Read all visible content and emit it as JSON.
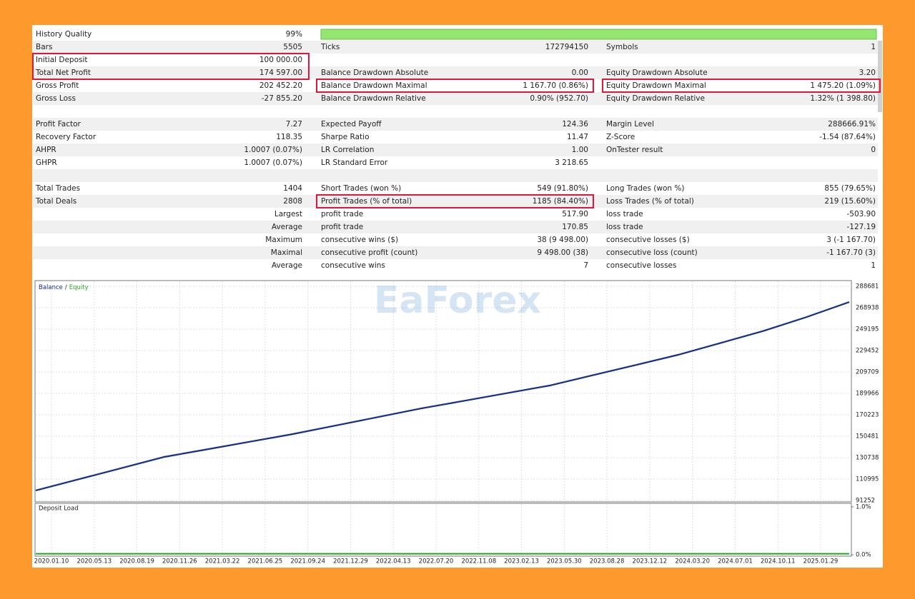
{
  "report": {
    "quality_bar_color": "#93e66f",
    "rows": [
      {
        "c1": {
          "label": "History Quality",
          "value": "99%"
        }
      },
      {
        "c1": {
          "label": "Bars",
          "value": "5505"
        },
        "c2": {
          "label": "Ticks",
          "value": "172794150"
        },
        "c3": {
          "label": "Symbols",
          "value": "1"
        }
      },
      {
        "c1": {
          "label": "Initial Deposit",
          "value": "100 000.00"
        }
      },
      {
        "c1": {
          "label": "Total Net Profit",
          "value": "174 597.00"
        },
        "c2": {
          "label": "Balance Drawdown Absolute",
          "value": "0.00"
        },
        "c3": {
          "label": "Equity Drawdown Absolute",
          "value": "3.20"
        }
      },
      {
        "c1": {
          "label": "Gross Profit",
          "value": "202 452.20"
        },
        "c2": {
          "label": "Balance Drawdown Maximal",
          "value": "1 167.70 (0.86%)"
        },
        "c3": {
          "label": "Equity Drawdown Maximal",
          "value": "1 475.20 (1.09%)"
        }
      },
      {
        "c1": {
          "label": "Gross Loss",
          "value": "-27 855.20"
        },
        "c2": {
          "label": "Balance Drawdown Relative",
          "value": "0.90% (952.70)"
        },
        "c3": {
          "label": "Equity Drawdown Relative",
          "value": "1.32% (1 398.80)"
        }
      },
      {},
      {
        "c1": {
          "label": "Profit Factor",
          "value": "7.27"
        },
        "c2": {
          "label": "Expected Payoff",
          "value": "124.36"
        },
        "c3": {
          "label": "Margin Level",
          "value": "288666.91%"
        }
      },
      {
        "c1": {
          "label": "Recovery Factor",
          "value": "118.35"
        },
        "c2": {
          "label": "Sharpe Ratio",
          "value": "11.47"
        },
        "c3": {
          "label": "Z-Score",
          "value": "-1.54 (87.64%)"
        }
      },
      {
        "c1": {
          "label": "AHPR",
          "value": "1.0007 (0.07%)"
        },
        "c2": {
          "label": "LR Correlation",
          "value": "1.00"
        },
        "c3": {
          "label": "OnTester result",
          "value": "0"
        }
      },
      {
        "c1": {
          "label": "GHPR",
          "value": "1.0007 (0.07%)"
        },
        "c2": {
          "label": "LR Standard Error",
          "value": "3 218.65"
        }
      },
      {},
      {
        "c1": {
          "label": "Total Trades",
          "value": "1404"
        },
        "c2": {
          "label": "Short Trades (won %)",
          "value": "549 (91.80%)"
        },
        "c3": {
          "label": "Long Trades (won %)",
          "value": "855 (79.65%)"
        }
      },
      {
        "c1": {
          "label": "Total Deals",
          "value": "2808"
        },
        "c2": {
          "label": "Profit Trades (% of total)",
          "value": "1185 (84.40%)"
        },
        "c3": {
          "label": "Loss Trades (% of total)",
          "value": "219 (15.60%)"
        }
      },
      {
        "c1": {
          "value": "Largest"
        },
        "c2": {
          "label": "profit trade",
          "value": "517.90"
        },
        "c3": {
          "label": "loss trade",
          "value": "-503.90"
        }
      },
      {
        "c1": {
          "value": "Average"
        },
        "c2": {
          "label": "profit trade",
          "value": "170.85"
        },
        "c3": {
          "label": "loss trade",
          "value": "-127.19"
        }
      },
      {
        "c1": {
          "value": "Maximum"
        },
        "c2": {
          "label": "consecutive wins ($)",
          "value": "38 (9 498.00)"
        },
        "c3": {
          "label": "consecutive losses ($)",
          "value": "3 (-1 167.70)"
        }
      },
      {
        "c1": {
          "value": "Maximal"
        },
        "c2": {
          "label": "consecutive profit (count)",
          "value": "9 498.00 (38)"
        },
        "c3": {
          "label": "consecutive loss (count)",
          "value": "-1 167.70 (3)"
        }
      },
      {
        "c1": {
          "value": "Average"
        },
        "c2": {
          "label": "consecutive wins",
          "value": "7"
        },
        "c3": {
          "label": "consecutive losses",
          "value": "1"
        }
      }
    ]
  },
  "watermark": "EaForex",
  "graph": {
    "type": "line",
    "legend_separator": "/",
    "series": [
      {
        "name": "Balance",
        "color": "#1a2f8a",
        "values": [
          100500,
          110800,
          121100,
          131400,
          138400,
          145400,
          152450,
          160300,
          168200,
          176100,
          183100,
          190200,
          197200,
          206600,
          216000,
          225500,
          236500,
          247600,
          260300,
          274200
        ]
      },
      {
        "name": "Equity",
        "color": "#2aa82a",
        "values": [
          100300,
          110600,
          120900,
          131200,
          138200,
          145200,
          152250,
          160100,
          168000,
          175900,
          182900,
          190000,
          197000,
          206400,
          215800,
          225300,
          236300,
          247400,
          260100,
          274000
        ]
      }
    ],
    "ylim": [
      91252,
      288681
    ],
    "yticks": [
      91252,
      110995,
      130738,
      150481,
      170223,
      189966,
      209709,
      229452,
      249195,
      268938,
      288681
    ],
    "xticks": [
      "2020.01.10",
      "2020.05.13",
      "2020.08.19",
      "2020.11.26",
      "2021.03.22",
      "2021.06.25",
      "2021.09.24",
      "2021.12.29",
      "2022.04.13",
      "2022.07.20",
      "2022.11.08",
      "2023.02.13",
      "2023.05.30",
      "2023.08.28",
      "2023.12.12",
      "2024.03.20",
      "2024.07.01",
      "2024.10.11",
      "2025.01.29"
    ],
    "grid": true
  },
  "deposit_load": {
    "type": "line",
    "title": "Deposit Load",
    "color": "#1fa51f",
    "values": [
      0.02,
      0.02,
      0.02,
      0.02,
      0.02,
      0.02,
      0.02,
      0.02,
      0.02,
      0.02,
      0.02,
      0.02,
      0.02,
      0.02,
      0.02,
      0.02,
      0.02,
      0.02,
      0.02,
      0.02
    ],
    "ylim": [
      0,
      1
    ],
    "yticks": [
      {
        "value": 1,
        "label": "1.0%"
      },
      {
        "value": 0,
        "label": "0.0%"
      }
    ]
  }
}
